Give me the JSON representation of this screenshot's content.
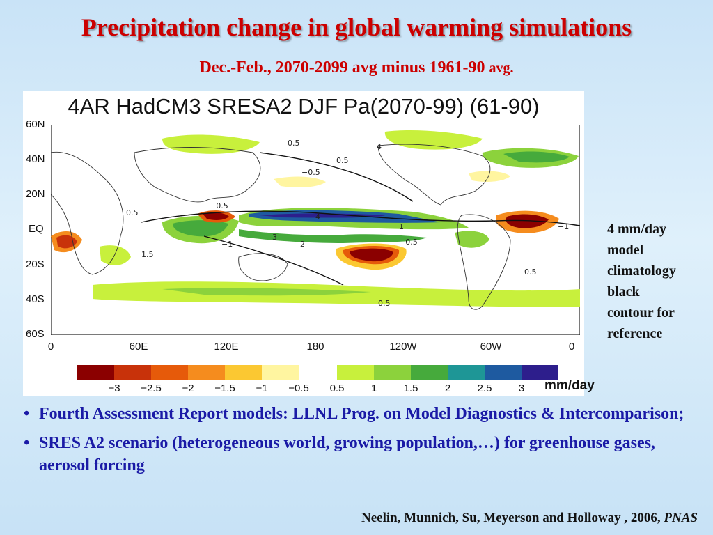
{
  "slide": {
    "title": "Precipitation change in global warming simulations",
    "subtitle_main": "Dec.-Feb., 2070-2099 avg minus 1961-90",
    "subtitle_small": "avg."
  },
  "figure": {
    "title": "4AR HadCM3 SRESA2 DJF Pa(2070-99)  (61-90)",
    "lat_labels": [
      "60N",
      "40N",
      "20N",
      "EQ",
      "20S",
      "40S",
      "60S"
    ],
    "lon_labels": [
      "0",
      "60E",
      "120E",
      "180",
      "120W",
      "60W",
      "0"
    ],
    "colorbar_labels": [
      "−3",
      "−2.5",
      "−2",
      "−1.5",
      "−1",
      "−0.5",
      "0.5",
      "1",
      "1.5",
      "2",
      "2.5",
      "3"
    ],
    "colorbar_colors": [
      "#8b0000",
      "#c8320a",
      "#e65a0a",
      "#f58c1e",
      "#fbc832",
      "#fff5a0",
      "#c8f03c",
      "#8cd23c",
      "#46aa3c",
      "#1e9696",
      "#1e5aa0",
      "#2d1e8c"
    ],
    "units": "mm/day",
    "contour_labels": [
      "0.5",
      "−0.5",
      "1",
      "−1",
      "4",
      "2",
      "1.5",
      "3"
    ]
  },
  "side_note": {
    "lines": [
      "4 mm/day",
      "model",
      "climatology",
      "black",
      "contour for",
      "reference"
    ]
  },
  "bullets": [
    "Fourth Assessment Report models: LLNL Prog. on Model Diagnostics & Intercomparison;",
    "SRES A2 scenario (heterogeneous world, growing population,…) for greenhouse gases, aerosol forcing"
  ],
  "citation": {
    "authors": "Neelin, Munnich, Su, Meyerson and Holloway , 2006,",
    "journal": "PNAS"
  }
}
